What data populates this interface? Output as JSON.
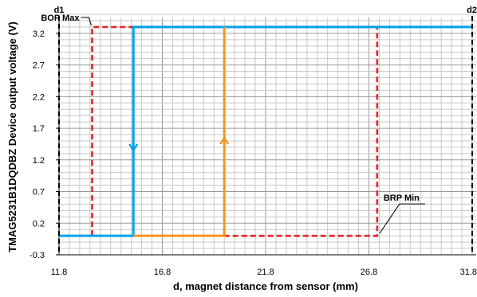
{
  "chart_data": {
    "type": "line",
    "xlabel": "d, magnet distance from sensor (mm)",
    "ylabel": "TMAG5231B1DQDBZ Device output voltage (V)",
    "xlim": [
      11.8,
      31.8
    ],
    "ylim": [
      -0.3,
      3.45
    ],
    "x_ticks": [
      11.8,
      16.8,
      21.8,
      26.8,
      31.8
    ],
    "y_ticks": [
      -0.3,
      0.2,
      0.7,
      1.2,
      1.7,
      2.2,
      2.7,
      3.2
    ],
    "x_minor_step": 0.5,
    "y_minor_step": 0.1,
    "grid": true,
    "series": [
      {
        "color": "#e8232a",
        "style": "dashed",
        "x": [
          13.4,
          13.4,
          27.2,
          27.2,
          19.8
        ],
        "y": [
          0.0,
          3.3,
          3.3,
          0.0,
          0.0
        ]
      },
      {
        "color": "#00a2e8",
        "style": "solid",
        "arrow": "down",
        "x": [
          11.8,
          15.4,
          15.4,
          31.8
        ],
        "y": [
          0.0,
          0.0,
          3.3,
          3.3
        ]
      },
      {
        "color": "#f7931e",
        "style": "solid",
        "arrow": "up",
        "x": [
          15.4,
          19.8,
          19.8
        ],
        "y": [
          0.0,
          0.0,
          3.3
        ]
      }
    ],
    "vlines": [
      {
        "x": 11.8,
        "label": "d1"
      },
      {
        "x": 31.8,
        "label": "d2"
      }
    ],
    "annotations": [
      {
        "text": "BOP Max",
        "x": 13.4,
        "y": 3.3
      },
      {
        "text": "BRP Min",
        "x": 27.2,
        "y": 0.0
      }
    ]
  }
}
